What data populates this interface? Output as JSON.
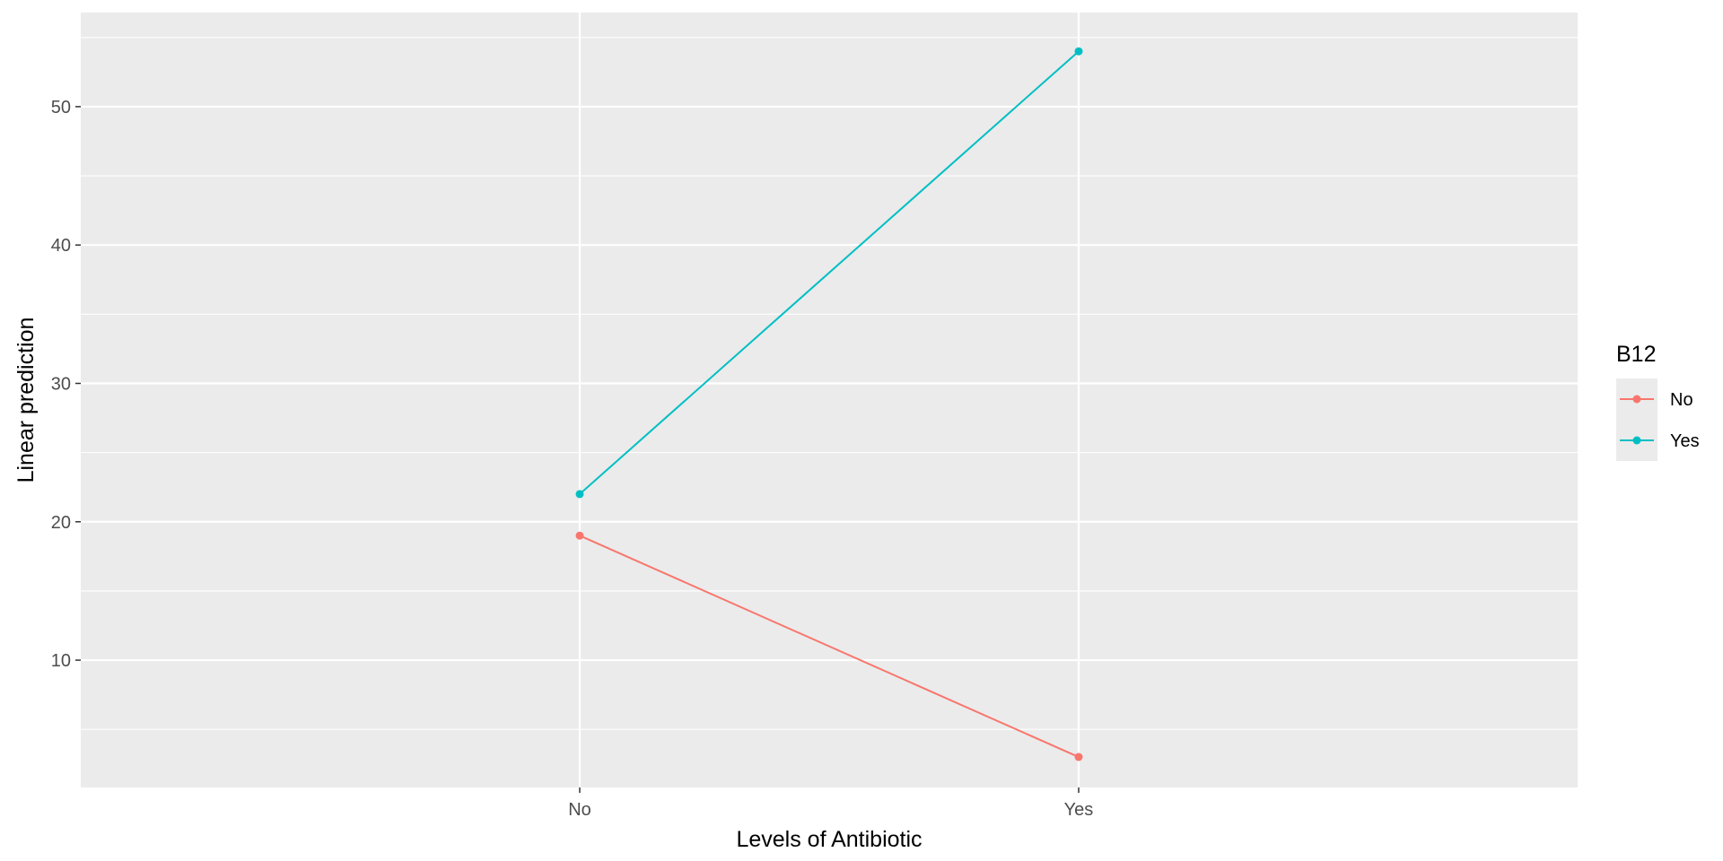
{
  "chart_data": {
    "type": "line",
    "xlabel": "Levels of Antibiotic",
    "ylabel": "Linear prediction",
    "categories": [
      "No",
      "Yes"
    ],
    "ylim": [
      0.8,
      56.8
    ],
    "yticks": [
      10,
      20,
      30,
      40,
      50
    ],
    "ytick_labels": [
      "10",
      "20",
      "30",
      "40",
      "50"
    ],
    "grid": true,
    "legend": {
      "title": "B12",
      "position": "right"
    },
    "series": [
      {
        "name": "No",
        "values": [
          19,
          3
        ],
        "color": "#F8766D"
      },
      {
        "name": "Yes",
        "values": [
          22,
          54
        ],
        "color": "#00BFC4"
      }
    ],
    "colors": {
      "panel": "#EBEBEB",
      "grid": "#FFFFFF"
    }
  }
}
